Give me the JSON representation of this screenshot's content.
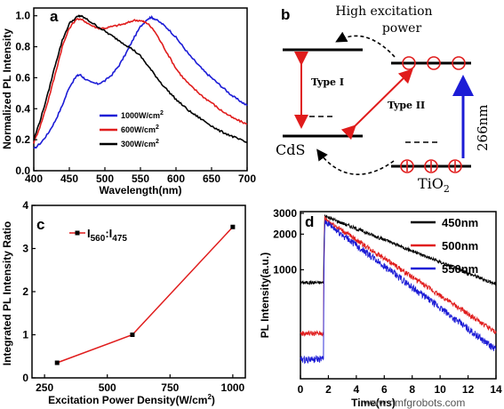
{
  "watermark": "www.nmfgrobots.com",
  "colors": {
    "blue": "#1c1cd6",
    "red": "#e01c1c",
    "black": "#000000"
  },
  "chart_data": [
    {
      "panel": "a",
      "type": "line",
      "xlabel": "Wavelength(nm)",
      "ylabel": "Normalized PL Intensity",
      "xlim": [
        400,
        700
      ],
      "ylim": [
        0,
        1.05
      ],
      "xticks": [
        400,
        450,
        500,
        550,
        600,
        650,
        700
      ],
      "yticks": [
        0.0,
        0.2,
        0.4,
        0.6,
        0.8,
        1.0
      ],
      "xtick_labels": [
        "400",
        "450",
        "500",
        "550",
        "600",
        "650",
        "700"
      ],
      "ytick_labels": [
        "0.0",
        "0.2",
        "0.4",
        "0.6",
        "0.8",
        "1.0"
      ],
      "legend_position": "middle-right",
      "series": [
        {
          "name": "1000W/cm",
          "sup": "2",
          "color": "#1c1cd6",
          "x": [
            400,
            410,
            420,
            430,
            440,
            450,
            460,
            465,
            470,
            480,
            490,
            500,
            510,
            520,
            530,
            540,
            550,
            560,
            565,
            570,
            580,
            590,
            600,
            610,
            620,
            630,
            640,
            650,
            660,
            670,
            680,
            690,
            700
          ],
          "y": [
            0.14,
            0.18,
            0.24,
            0.32,
            0.42,
            0.54,
            0.61,
            0.62,
            0.6,
            0.57,
            0.56,
            0.58,
            0.62,
            0.68,
            0.76,
            0.85,
            0.93,
            0.98,
            0.99,
            0.98,
            0.95,
            0.91,
            0.86,
            0.8,
            0.74,
            0.69,
            0.64,
            0.6,
            0.56,
            0.52,
            0.48,
            0.45,
            0.42
          ]
        },
        {
          "name": "600W/cm",
          "sup": "2",
          "color": "#e01c1c",
          "x": [
            400,
            410,
            420,
            430,
            440,
            450,
            460,
            470,
            480,
            490,
            500,
            510,
            520,
            530,
            540,
            550,
            555,
            560,
            570,
            580,
            590,
            600,
            610,
            620,
            630,
            640,
            650,
            660,
            670,
            680,
            690,
            700
          ],
          "y": [
            0.18,
            0.3,
            0.45,
            0.62,
            0.8,
            0.92,
            0.98,
            0.97,
            0.94,
            0.92,
            0.92,
            0.93,
            0.94,
            0.95,
            0.97,
            0.97,
            0.96,
            0.95,
            0.9,
            0.82,
            0.74,
            0.66,
            0.6,
            0.55,
            0.51,
            0.47,
            0.44,
            0.4,
            0.37,
            0.34,
            0.32,
            0.3
          ]
        },
        {
          "name": "300W/cm",
          "sup": "2",
          "color": "#000000",
          "x": [
            400,
            410,
            420,
            430,
            440,
            450,
            460,
            465,
            470,
            480,
            490,
            500,
            510,
            520,
            530,
            540,
            550,
            560,
            570,
            580,
            590,
            600,
            610,
            620,
            630,
            640,
            650,
            660,
            670,
            680,
            690,
            700
          ],
          "y": [
            0.2,
            0.34,
            0.5,
            0.68,
            0.84,
            0.95,
            0.99,
            1.0,
            0.99,
            0.96,
            0.93,
            0.9,
            0.87,
            0.84,
            0.81,
            0.78,
            0.74,
            0.68,
            0.62,
            0.56,
            0.51,
            0.46,
            0.42,
            0.38,
            0.35,
            0.32,
            0.29,
            0.26,
            0.24,
            0.22,
            0.2,
            0.18
          ]
        }
      ]
    },
    {
      "panel": "b",
      "type": "diagram",
      "labels": {
        "top": "High excitation",
        "top2": "power",
        "type1": "Type I",
        "type2": "Type II",
        "cds": "CdS",
        "tio2": "TiO",
        "tio2_sub": "2",
        "wavelength": "266nm"
      }
    },
    {
      "panel": "c",
      "type": "line",
      "xlabel": "Excitation Power Density(W/cm",
      "xlabel_sup": "2",
      "xlabel_end": ")",
      "ylabel": "Integrated PL Intensity Ratio",
      "xlim": [
        200,
        1050
      ],
      "ylim": [
        0,
        4
      ],
      "xticks": [
        250,
        500,
        750,
        1000
      ],
      "yticks": [
        0,
        1,
        2,
        3,
        4
      ],
      "xtick_labels": [
        "250",
        "500",
        "750",
        "1000"
      ],
      "ytick_labels": [
        "0",
        "1",
        "2",
        "3",
        "4"
      ],
      "legend_position": "top-left",
      "series": [
        {
          "name": "I",
          "sub1": "560",
          "mid": ":I",
          "sub2": "475",
          "color": "#e01c1c",
          "x": [
            300,
            600,
            1000
          ],
          "y": [
            0.35,
            1.0,
            3.5
          ]
        }
      ]
    },
    {
      "panel": "d",
      "type": "line",
      "xlabel": "Time(ns)",
      "ylabel": "PL Intensity(a.u.)",
      "xlim": [
        0,
        14
      ],
      "yscale": "log",
      "xticks": [
        0,
        2,
        4,
        6,
        8,
        10,
        12,
        14
      ],
      "xtick_labels": [
        "0",
        "2",
        "4",
        "6",
        "8",
        "10",
        "12",
        "14"
      ],
      "yticks": [
        1000,
        2000,
        3000
      ],
      "ytick_labels": [
        "1000",
        "2000",
        "3000"
      ],
      "legend_position": "top-right",
      "series": [
        {
          "name": "450nm",
          "color": "#000000",
          "baseline": 780,
          "peak": 2900,
          "end": 770,
          "tau": 4.5,
          "noise": 0.035
        },
        {
          "name": "500nm",
          "color": "#e01c1c",
          "baseline": 290,
          "peak": 2750,
          "end": 300,
          "tau": 3.2,
          "noise": 0.05
        },
        {
          "name": "550nm",
          "color": "#1c1cd6",
          "baseline": 175,
          "peak": 2600,
          "end": 215,
          "tau": 2.4,
          "noise": 0.07
        }
      ]
    }
  ]
}
